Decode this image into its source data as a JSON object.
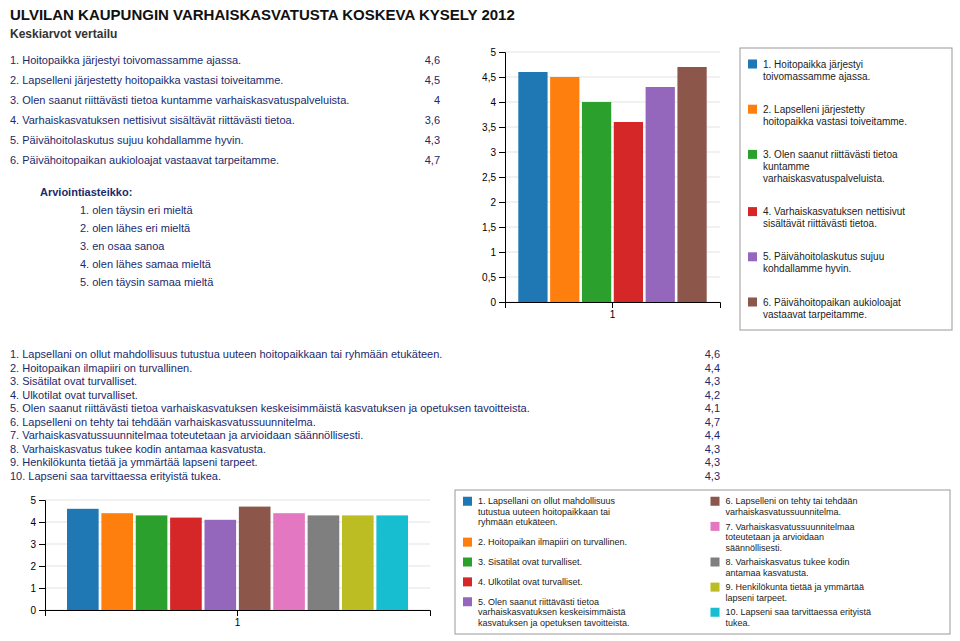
{
  "chart_data": [
    {
      "type": "bar",
      "title": "ULVILAN KAUPUNGIN VARHAISKASVATUSTA KOSKEVA KYSELY 2012",
      "subtitle": "Keskiarvot vertailu",
      "categories": [
        "1"
      ],
      "series": [
        {
          "name": "1. Hoitopaikka järjestyi\ntoivomassamme ajassa.",
          "values": [
            4.6
          ]
        },
        {
          "name": "2. Lapselleni järjestetty\nhoitopaikka vastasi toiveitamme.",
          "values": [
            4.5
          ]
        },
        {
          "name": "3. Olen saanut riittävästi tietoa\nkuntamme\nvarhaiskasvatuspalveluista.",
          "values": [
            4.0
          ]
        },
        {
          "name": "4. Varhaiskasvatuksen nettisivut\nsisältävät riittävästi tietoa.",
          "values": [
            3.6
          ]
        },
        {
          "name": "5. Päivähoitolaskutus sujuu\nkohdallamme hyvin.",
          "values": [
            4.3
          ]
        },
        {
          "name": "6. Päivähoitopaikan aukioloajat\nvastaavat tarpeitamme.",
          "values": [
            4.7
          ]
        }
      ],
      "ylim": [
        0,
        5
      ],
      "yticks": [
        0,
        {
          "value": 0.5,
          "label": "0,5"
        },
        1,
        {
          "value": 1.5,
          "label": "1,5"
        },
        2,
        {
          "value": 2.5,
          "label": "2,5"
        },
        3,
        {
          "value": 3.5,
          "label": "3,5"
        },
        4,
        {
          "value": 4.5,
          "label": "4,5"
        },
        5
      ],
      "grid": true,
      "legend": "right",
      "annotations": [
        {
          "text": "1. Hoitopaikka järjestyi toivomassamme ajassa.",
          "label": "4,6"
        },
        {
          "text": "2. Lapselleni järjestetty hoitopaikka vastasi toiveitamme.",
          "label": "4,5"
        },
        {
          "text": "3. Olen saanut riittävästi tietoa kuntamme varhaiskasvatuspalveluista.",
          "label": "4"
        },
        {
          "text": "4. Varhaiskasvatuksen nettisivut sisältävät riittävästi tietoa.",
          "label": "3,6"
        },
        {
          "text": "5. Päivähoitolaskutus sujuu kohdallamme hyvin.",
          "label": "4,3"
        },
        {
          "text": "6. Päivähoitopaikan aukioloajat vastaavat tarpeitamme.",
          "label": "4,7"
        },
        {
          "text": "Arviointiasteikko:"
        },
        {
          "text": "1. olen täysin eri mieltä"
        },
        {
          "text": "2. olen lähes eri mieltä"
        },
        {
          "text": "3. en osaa sanoa"
        },
        {
          "text": "4. olen lähes samaa mieltä"
        },
        {
          "text": "5. olen täysin samaa mieltä"
        }
      ]
    },
    {
      "type": "bar",
      "categories": [
        "1"
      ],
      "series": [
        {
          "name": "1. Lapsellani on ollut mahdollisuus\ntutustua uuteen hoitopaikkaan tai\nryhmään etukäteen.",
          "values": [
            4.6
          ]
        },
        {
          "name": "2. Hoitopaikan ilmapiiri on turvallinen.",
          "values": [
            4.4
          ]
        },
        {
          "name": "3. Sisätilat ovat turvalliset.",
          "values": [
            4.3
          ]
        },
        {
          "name": "4. Ulkotilat ovat turvalliset.",
          "values": [
            4.2
          ]
        },
        {
          "name": "5. Olen saanut riittävästi tietoa\nvarhaiskasvatuksen keskeisimmäistä\nkasvatuksen ja opetuksen tavoitteista.",
          "values": [
            4.1
          ]
        },
        {
          "name": "6. Lapselleni on tehty tai tehdään\nvarhaiskasvatussuunnitelma.",
          "values": [
            4.7
          ]
        },
        {
          "name": "7. Varhaiskasvatussuunnitelmaa\ntoteutetaan ja arvioidaan\nsäännöllisesti.",
          "values": [
            4.4
          ]
        },
        {
          "name": "8. Varhaiskasvatus tukee kodin\nantamaa kasvatusta.",
          "values": [
            4.3
          ]
        },
        {
          "name": "9. Henkilökunta tietää ja ymmärtää\nlapseni tarpeet.",
          "values": [
            4.3
          ]
        },
        {
          "name": "10. Lapseni saa tarvittaessa erityistä\ntukea.",
          "values": [
            4.3
          ]
        }
      ],
      "ylim": [
        0,
        5
      ],
      "yticks": [
        0,
        1,
        2,
        3,
        4,
        5
      ],
      "grid": true,
      "legend": "right",
      "annotations": [
        {
          "text": "1. Lapsellani on ollut mahdollisuus tutustua uuteen hoitopaikkaan tai ryhmään etukäteen.",
          "label": "4,6"
        },
        {
          "text": "2. Hoitopaikan ilmapiiri on turvallinen.",
          "label": "4,4"
        },
        {
          "text": "3. Sisätilat ovat turvalliset.",
          "label": "4,3"
        },
        {
          "text": "4. Ulkotilat ovat turvalliset.",
          "label": "4,2"
        },
        {
          "text": "5. Olen saanut riittävästi tietoa varhaiskasvatuksen keskeisimmäistä kasvatuksen ja opetuksen tavoitteista.",
          "label": "4,1"
        },
        {
          "text": "6. Lapselleni on tehty tai tehdään varhaiskasvatussuunnitelma.",
          "label": "4,7"
        },
        {
          "text": "7. Varhaiskasvatussuunnitelmaa toteutetaan ja arvioidaan säännöllisesti.",
          "label": "4,4"
        },
        {
          "text": "8. Varhaiskasvatus tukee kodin antamaa kasvatusta.",
          "label": "4,3"
        },
        {
          "text": "9. Henkilökunta tietää ja ymmärtää lapseni tarpeet.",
          "label": "4,3"
        },
        {
          "text": "10. Lapseni saa tarvittaessa erityistä tukea.",
          "label": "4,3"
        }
      ]
    }
  ]
}
